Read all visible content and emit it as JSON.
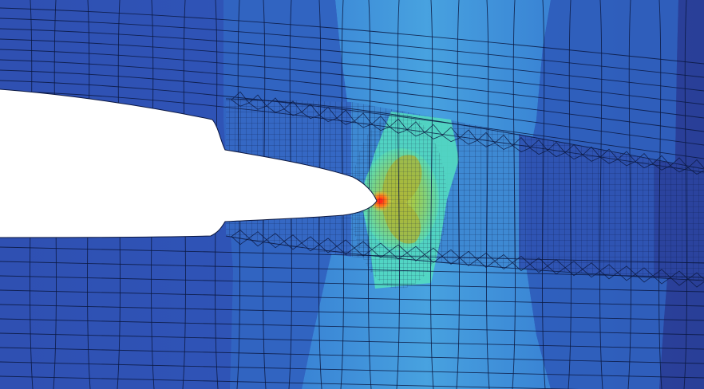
{
  "scene": {
    "subject": "fea-crack-tip-stress-contour-mesh",
    "caption": "",
    "colormap": {
      "low": "#2e4fb3",
      "low_mid": "#3d7fd0",
      "mid": "#4fb3e6",
      "mid_high": "#55e0c4",
      "high": "#9acb4a",
      "peak": "#ff2b1a"
    },
    "background": "#ffffff",
    "mesh_line_color": "#0b1740"
  }
}
